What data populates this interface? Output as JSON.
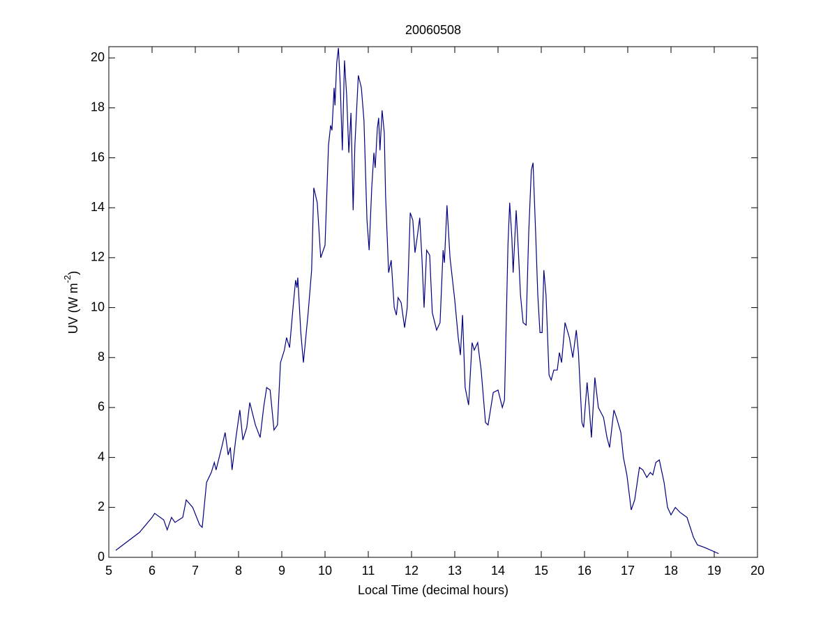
{
  "chart_data": {
    "type": "line",
    "title": "20060508",
    "x_label": "Local Time (decimal hours)",
    "y_label": "UV (W m",
    "y_label_superscript": "-2",
    "y_label_end": ")",
    "xlim": [
      5,
      20
    ],
    "xticks": [
      5,
      6,
      7,
      8,
      9,
      10,
      11,
      12,
      13,
      14,
      15,
      16,
      17,
      18,
      19,
      20
    ],
    "ylim": [
      0,
      20.45
    ],
    "yticks": [
      0,
      2,
      4,
      6,
      8,
      10,
      12,
      14,
      16,
      18,
      20
    ],
    "grid": false,
    "x": [
      5.16,
      5.71,
      6.0,
      6.06,
      6.27,
      6.35,
      6.45,
      6.53,
      6.71,
      6.79,
      6.94,
      7.1,
      7.16,
      7.26,
      7.37,
      7.44,
      7.48,
      7.61,
      7.69,
      7.76,
      7.81,
      7.85,
      7.94,
      8.03,
      8.1,
      8.19,
      8.26,
      8.39,
      8.5,
      8.58,
      8.65,
      8.73,
      8.82,
      8.9,
      8.97,
      9.06,
      9.11,
      9.18,
      9.27,
      9.32,
      9.35,
      9.37,
      9.44,
      9.5,
      9.61,
      9.69,
      9.74,
      9.82,
      9.9,
      10.0,
      10.08,
      10.13,
      10.16,
      10.21,
      10.23,
      10.27,
      10.31,
      10.35,
      10.4,
      10.45,
      10.5,
      10.55,
      10.6,
      10.65,
      10.69,
      10.77,
      10.84,
      10.9,
      10.97,
      11.02,
      11.08,
      11.13,
      11.16,
      11.21,
      11.24,
      11.27,
      11.32,
      11.37,
      11.4,
      11.47,
      11.53,
      11.6,
      11.65,
      11.69,
      11.76,
      11.84,
      11.9,
      11.97,
      12.03,
      12.08,
      12.13,
      12.19,
      12.24,
      12.29,
      12.35,
      12.42,
      12.48,
      12.58,
      12.66,
      12.73,
      12.76,
      12.82,
      12.89,
      13.0,
      13.08,
      13.13,
      13.18,
      13.24,
      13.32,
      13.4,
      13.45,
      13.53,
      13.61,
      13.71,
      13.77,
      13.89,
      14.0,
      14.1,
      14.15,
      14.23,
      14.27,
      14.32,
      14.35,
      14.42,
      14.47,
      14.52,
      14.58,
      14.65,
      14.71,
      14.77,
      14.81,
      14.87,
      14.92,
      14.97,
      15.02,
      15.06,
      15.11,
      15.18,
      15.23,
      15.29,
      15.37,
      15.42,
      15.47,
      15.55,
      15.65,
      15.73,
      15.81,
      15.86,
      15.94,
      15.98,
      16.06,
      16.11,
      16.16,
      16.24,
      16.32,
      16.44,
      16.52,
      16.58,
      16.68,
      16.74,
      16.84,
      16.9,
      16.98,
      17.08,
      17.16,
      17.27,
      17.35,
      17.44,
      17.52,
      17.58,
      17.65,
      17.73,
      17.84,
      17.92,
      18.0,
      18.1,
      18.21,
      18.37,
      18.52,
      18.61,
      18.77,
      19.1
    ],
    "series": [
      {
        "color": "#00007f",
        "values": [
          0.28,
          1.0,
          1.6,
          1.76,
          1.5,
          1.1,
          1.6,
          1.4,
          1.6,
          2.3,
          2.0,
          1.3,
          1.2,
          3.0,
          3.4,
          3.8,
          3.5,
          4.4,
          5.0,
          4.1,
          4.4,
          3.5,
          4.8,
          5.9,
          4.7,
          5.2,
          6.2,
          5.3,
          4.8,
          6.0,
          6.8,
          6.7,
          5.1,
          5.3,
          7.8,
          8.3,
          8.8,
          8.4,
          10.2,
          11.1,
          10.8,
          11.2,
          9.0,
          7.8,
          9.8,
          11.5,
          14.8,
          14.2,
          12.0,
          12.5,
          16.5,
          17.3,
          17.1,
          18.8,
          18.1,
          19.8,
          20.4,
          19.0,
          16.3,
          19.9,
          18.5,
          16.2,
          17.8,
          13.9,
          16.5,
          19.3,
          18.8,
          17.5,
          13.5,
          12.3,
          14.8,
          16.2,
          15.6,
          17.2,
          17.6,
          16.3,
          17.9,
          17.0,
          14.5,
          11.4,
          11.9,
          10.0,
          9.7,
          10.4,
          10.2,
          9.2,
          10.0,
          13.8,
          13.5,
          12.2,
          12.8,
          13.6,
          12.0,
          10.0,
          12.3,
          12.1,
          9.8,
          9.1,
          9.4,
          12.3,
          11.8,
          14.1,
          12.0,
          10.3,
          8.8,
          8.1,
          9.7,
          6.8,
          6.1,
          8.6,
          8.3,
          8.6,
          7.5,
          5.4,
          5.3,
          6.6,
          6.7,
          6.0,
          6.3,
          12.5,
          14.2,
          12.8,
          11.4,
          13.9,
          12.3,
          10.5,
          9.4,
          9.3,
          13.0,
          15.5,
          15.8,
          13.0,
          10.5,
          9.0,
          9.0,
          11.5,
          10.5,
          7.3,
          7.1,
          7.5,
          7.5,
          8.2,
          7.8,
          9.4,
          8.8,
          8.0,
          9.1,
          8.2,
          5.4,
          5.2,
          7.0,
          6.0,
          4.8,
          7.2,
          6.0,
          5.6,
          4.8,
          4.4,
          5.9,
          5.6,
          5.0,
          4.0,
          3.3,
          1.9,
          2.3,
          3.6,
          3.5,
          3.2,
          3.4,
          3.3,
          3.8,
          3.9,
          3.0,
          2.0,
          1.7,
          2.0,
          1.8,
          1.6,
          0.8,
          0.5,
          0.4,
          0.15
        ]
      }
    ]
  }
}
